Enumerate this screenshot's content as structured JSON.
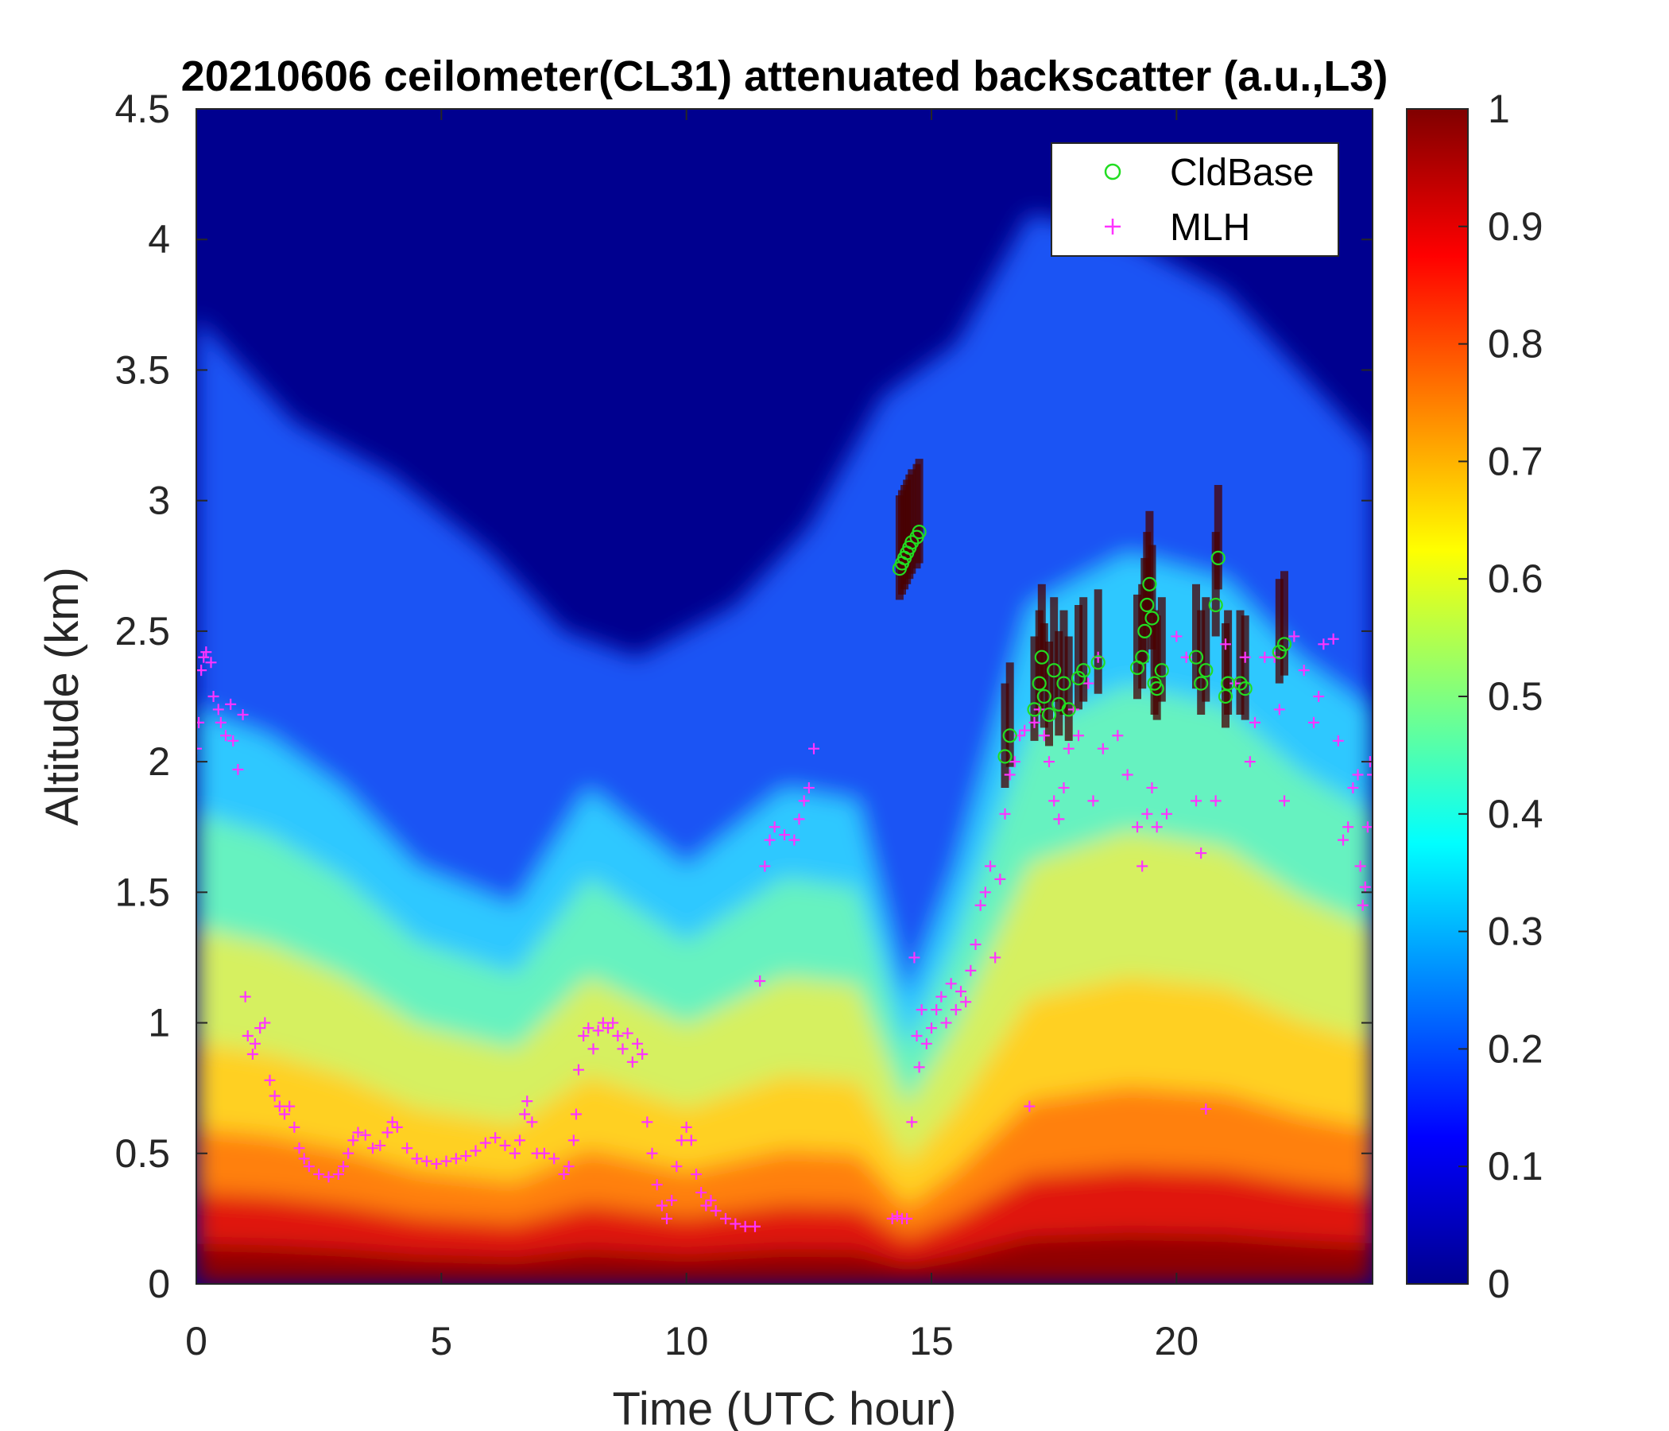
{
  "chart_data": {
    "type": "heatmap",
    "title": "20210606 ceilometer(CL31) attenuated backscatter (a.u.,L3)",
    "xlabel": "Time (UTC hour)",
    "ylabel": "Altitude (km)",
    "xlim": [
      0,
      24
    ],
    "ylim": [
      0,
      4.5
    ],
    "x_ticks": [
      0,
      5,
      10,
      15,
      20
    ],
    "y_ticks": [
      0,
      0.5,
      1,
      1.5,
      2,
      2.5,
      3,
      3.5,
      4,
      4.5
    ],
    "colorbar": {
      "colormap": "jet",
      "range": [
        0,
        1
      ],
      "ticks": [
        0,
        0.1,
        0.2,
        0.3,
        0.4,
        0.5,
        0.6,
        0.7,
        0.8,
        0.9,
        1
      ]
    },
    "legend": {
      "position": "top-right",
      "entries": [
        {
          "label": "CldBase",
          "marker": "circle",
          "color": "#22dd22"
        },
        {
          "label": "MLH",
          "marker": "plus",
          "color": "#ff33ff"
        }
      ]
    },
    "backscatter_profile": {
      "description_level_at_surface": 0.75,
      "boundary_layer_top_km": [
        [
          0,
          2.2
        ],
        [
          1.5,
          2.1
        ],
        [
          3,
          1.9
        ],
        [
          4.5,
          1.6
        ],
        [
          6.5,
          1.45
        ],
        [
          8,
          1.9
        ],
        [
          10,
          1.6
        ],
        [
          12,
          1.9
        ],
        [
          13.5,
          1.85
        ],
        [
          14.5,
          1.1
        ],
        [
          15.5,
          1.6
        ],
        [
          17,
          2.6
        ],
        [
          19,
          2.8
        ],
        [
          21,
          2.7
        ],
        [
          22.5,
          2.4
        ],
        [
          24,
          2.2
        ]
      ],
      "high_layer_top_km": [
        [
          0,
          3.7
        ],
        [
          2,
          3.3
        ],
        [
          4,
          3.1
        ],
        [
          6,
          2.8
        ],
        [
          7.5,
          2.5
        ],
        [
          9,
          2.4
        ],
        [
          11,
          2.6
        ],
        [
          12.5,
          2.9
        ],
        [
          14,
          3.4
        ],
        [
          15.5,
          3.6
        ],
        [
          17,
          4.1
        ],
        [
          19,
          4.0
        ],
        [
          21,
          3.8
        ],
        [
          24,
          3.2
        ]
      ]
    },
    "series": [
      {
        "name": "CldBase",
        "points": [
          [
            14.35,
            2.74
          ],
          [
            14.4,
            2.76
          ],
          [
            14.45,
            2.78
          ],
          [
            14.5,
            2.8
          ],
          [
            14.55,
            2.82
          ],
          [
            14.6,
            2.84
          ],
          [
            14.7,
            2.86
          ],
          [
            14.75,
            2.88
          ],
          [
            16.5,
            2.02
          ],
          [
            16.6,
            2.1
          ],
          [
            17.1,
            2.2
          ],
          [
            17.2,
            2.3
          ],
          [
            17.25,
            2.4
          ],
          [
            17.3,
            2.25
          ],
          [
            17.4,
            2.18
          ],
          [
            17.5,
            2.35
          ],
          [
            17.6,
            2.22
          ],
          [
            17.7,
            2.3
          ],
          [
            17.8,
            2.2
          ],
          [
            18.0,
            2.32
          ],
          [
            18.1,
            2.35
          ],
          [
            18.4,
            2.38
          ],
          [
            19.2,
            2.36
          ],
          [
            19.3,
            2.4
          ],
          [
            19.35,
            2.5
          ],
          [
            19.4,
            2.6
          ],
          [
            19.45,
            2.68
          ],
          [
            19.5,
            2.55
          ],
          [
            19.55,
            2.3
          ],
          [
            19.6,
            2.28
          ],
          [
            19.7,
            2.35
          ],
          [
            20.4,
            2.4
          ],
          [
            20.5,
            2.3
          ],
          [
            20.6,
            2.35
          ],
          [
            20.8,
            2.6
          ],
          [
            20.85,
            2.78
          ],
          [
            21.0,
            2.25
          ],
          [
            21.05,
            2.3
          ],
          [
            21.3,
            2.3
          ],
          [
            21.4,
            2.28
          ],
          [
            22.1,
            2.42
          ],
          [
            22.2,
            2.45
          ]
        ]
      },
      {
        "name": "MLH",
        "points": [
          [
            0.0,
            2.05
          ],
          [
            0.05,
            2.15
          ],
          [
            0.1,
            2.35
          ],
          [
            0.15,
            2.4
          ],
          [
            0.2,
            2.42
          ],
          [
            0.3,
            2.38
          ],
          [
            0.35,
            2.25
          ],
          [
            0.45,
            2.2
          ],
          [
            0.5,
            2.15
          ],
          [
            0.6,
            2.1
          ],
          [
            0.7,
            2.22
          ],
          [
            0.75,
            2.08
          ],
          [
            0.85,
            1.97
          ],
          [
            0.95,
            2.18
          ],
          [
            1.0,
            1.1
          ],
          [
            1.05,
            0.95
          ],
          [
            1.15,
            0.88
          ],
          [
            1.2,
            0.92
          ],
          [
            1.3,
            0.98
          ],
          [
            1.4,
            1.0
          ],
          [
            1.5,
            0.78
          ],
          [
            1.6,
            0.72
          ],
          [
            1.7,
            0.68
          ],
          [
            1.8,
            0.65
          ],
          [
            1.9,
            0.68
          ],
          [
            2.0,
            0.6
          ],
          [
            2.1,
            0.52
          ],
          [
            2.2,
            0.48
          ],
          [
            2.3,
            0.45
          ],
          [
            2.5,
            0.42
          ],
          [
            2.7,
            0.41
          ],
          [
            2.9,
            0.42
          ],
          [
            3.0,
            0.45
          ],
          [
            3.1,
            0.5
          ],
          [
            3.2,
            0.55
          ],
          [
            3.3,
            0.58
          ],
          [
            3.45,
            0.57
          ],
          [
            3.6,
            0.52
          ],
          [
            3.75,
            0.53
          ],
          [
            3.9,
            0.58
          ],
          [
            4.0,
            0.62
          ],
          [
            4.1,
            0.6
          ],
          [
            4.3,
            0.52
          ],
          [
            4.5,
            0.48
          ],
          [
            4.7,
            0.47
          ],
          [
            4.9,
            0.46
          ],
          [
            5.1,
            0.47
          ],
          [
            5.3,
            0.48
          ],
          [
            5.5,
            0.49
          ],
          [
            5.7,
            0.51
          ],
          [
            5.9,
            0.54
          ],
          [
            6.1,
            0.56
          ],
          [
            6.3,
            0.53
          ],
          [
            6.5,
            0.5
          ],
          [
            6.6,
            0.55
          ],
          [
            6.7,
            0.65
          ],
          [
            6.75,
            0.7
          ],
          [
            6.85,
            0.62
          ],
          [
            6.95,
            0.5
          ],
          [
            7.1,
            0.5
          ],
          [
            7.3,
            0.48
          ],
          [
            7.5,
            0.42
          ],
          [
            7.6,
            0.45
          ],
          [
            7.7,
            0.55
          ],
          [
            7.75,
            0.65
          ],
          [
            7.8,
            0.82
          ],
          [
            7.9,
            0.95
          ],
          [
            8.0,
            0.98
          ],
          [
            8.1,
            0.9
          ],
          [
            8.2,
            0.97
          ],
          [
            8.3,
            1.0
          ],
          [
            8.4,
            0.98
          ],
          [
            8.5,
            1.0
          ],
          [
            8.6,
            0.95
          ],
          [
            8.7,
            0.9
          ],
          [
            8.8,
            0.96
          ],
          [
            8.9,
            0.85
          ],
          [
            9.0,
            0.92
          ],
          [
            9.1,
            0.88
          ],
          [
            9.2,
            0.62
          ],
          [
            9.3,
            0.5
          ],
          [
            9.4,
            0.38
          ],
          [
            9.5,
            0.3
          ],
          [
            9.6,
            0.25
          ],
          [
            9.7,
            0.32
          ],
          [
            9.8,
            0.45
          ],
          [
            9.9,
            0.55
          ],
          [
            10.0,
            0.6
          ],
          [
            10.1,
            0.55
          ],
          [
            10.2,
            0.42
          ],
          [
            10.3,
            0.35
          ],
          [
            10.4,
            0.3
          ],
          [
            10.5,
            0.32
          ],
          [
            10.6,
            0.28
          ],
          [
            10.8,
            0.25
          ],
          [
            11.0,
            0.23
          ],
          [
            11.2,
            0.22
          ],
          [
            11.4,
            0.22
          ],
          [
            11.5,
            1.16
          ],
          [
            11.6,
            1.6
          ],
          [
            11.7,
            1.7
          ],
          [
            11.8,
            1.75
          ],
          [
            12.0,
            1.72
          ],
          [
            12.2,
            1.7
          ],
          [
            12.3,
            1.78
          ],
          [
            12.4,
            1.85
          ],
          [
            12.5,
            1.9
          ],
          [
            12.6,
            2.05
          ],
          [
            14.2,
            0.25
          ],
          [
            14.3,
            0.26
          ],
          [
            14.4,
            0.25
          ],
          [
            14.5,
            0.25
          ],
          [
            14.6,
            0.62
          ],
          [
            14.65,
            1.25
          ],
          [
            14.7,
            0.95
          ],
          [
            14.75,
            0.83
          ],
          [
            14.8,
            1.05
          ],
          [
            14.9,
            0.92
          ],
          [
            15.0,
            0.98
          ],
          [
            15.1,
            1.05
          ],
          [
            15.2,
            1.1
          ],
          [
            15.3,
            1.0
          ],
          [
            15.4,
            1.15
          ],
          [
            15.5,
            1.05
          ],
          [
            15.6,
            1.12
          ],
          [
            15.7,
            1.08
          ],
          [
            15.8,
            1.2
          ],
          [
            15.9,
            1.3
          ],
          [
            16.0,
            1.45
          ],
          [
            16.1,
            1.5
          ],
          [
            16.2,
            1.6
          ],
          [
            16.3,
            1.25
          ],
          [
            16.4,
            1.55
          ],
          [
            16.5,
            1.8
          ],
          [
            16.6,
            1.95
          ],
          [
            16.7,
            2.0
          ],
          [
            16.8,
            2.1
          ],
          [
            16.9,
            2.12
          ],
          [
            17.0,
            0.68
          ],
          [
            17.1,
            2.15
          ],
          [
            17.2,
            2.2
          ],
          [
            17.3,
            2.1
          ],
          [
            17.4,
            2.0
          ],
          [
            17.5,
            1.85
          ],
          [
            17.6,
            1.78
          ],
          [
            17.7,
            1.9
          ],
          [
            17.8,
            2.05
          ],
          [
            17.9,
            2.2
          ],
          [
            18.0,
            2.1
          ],
          [
            18.2,
            2.3
          ],
          [
            18.3,
            1.85
          ],
          [
            18.4,
            2.4
          ],
          [
            18.5,
            2.05
          ],
          [
            18.8,
            2.1
          ],
          [
            19.0,
            1.95
          ],
          [
            19.2,
            1.75
          ],
          [
            19.3,
            1.6
          ],
          [
            19.4,
            1.8
          ],
          [
            19.5,
            1.9
          ],
          [
            19.6,
            1.75
          ],
          [
            19.8,
            1.8
          ],
          [
            20.0,
            2.48
          ],
          [
            20.2,
            2.4
          ],
          [
            20.4,
            1.85
          ],
          [
            20.5,
            1.65
          ],
          [
            20.6,
            0.67
          ],
          [
            20.8,
            1.85
          ],
          [
            21.0,
            2.45
          ],
          [
            21.2,
            2.3
          ],
          [
            21.4,
            2.4
          ],
          [
            21.5,
            2.0
          ],
          [
            21.6,
            2.15
          ],
          [
            21.8,
            2.4
          ],
          [
            22.0,
            2.4
          ],
          [
            22.1,
            2.2
          ],
          [
            22.2,
            1.85
          ],
          [
            22.4,
            2.48
          ],
          [
            22.6,
            2.35
          ],
          [
            22.8,
            2.15
          ],
          [
            22.9,
            2.25
          ],
          [
            23.0,
            2.45
          ],
          [
            23.2,
            2.47
          ],
          [
            23.3,
            2.08
          ],
          [
            23.4,
            1.7
          ],
          [
            23.5,
            1.75
          ],
          [
            23.6,
            1.9
          ],
          [
            23.7,
            1.95
          ],
          [
            23.75,
            1.6
          ],
          [
            23.8,
            1.45
          ],
          [
            23.85,
            1.52
          ],
          [
            23.9,
            1.75
          ],
          [
            23.95,
            2.0
          ],
          [
            24.0,
            1.95
          ]
        ]
      }
    ]
  }
}
